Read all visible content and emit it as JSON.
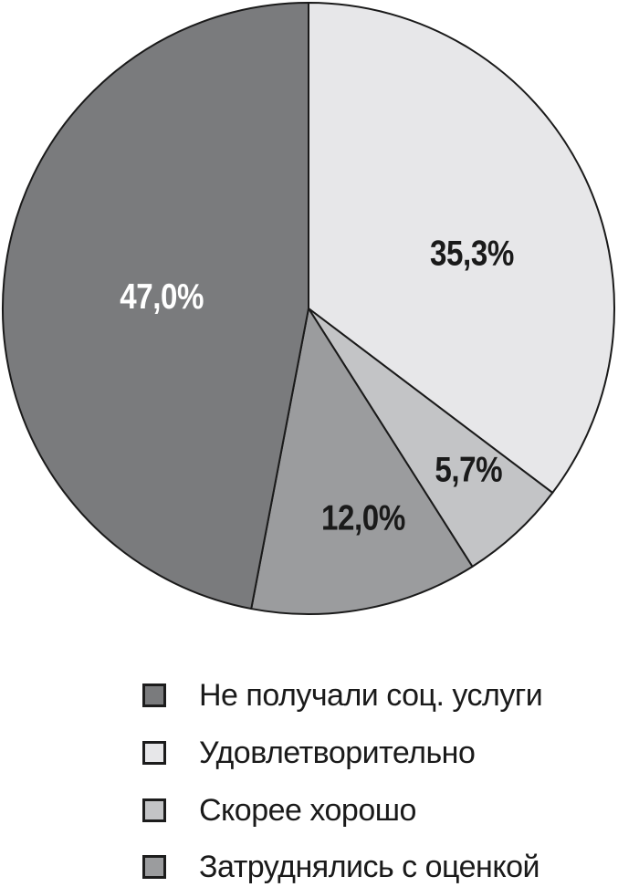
{
  "chart_data": {
    "type": "pie",
    "title": "",
    "start_angle_deg": 0,
    "direction": "clockwise",
    "stroke_color": "#1a1a1a",
    "background_color": "#ffffff",
    "slices": [
      {
        "label": "Удовлетворительно",
        "value": 35.3,
        "display": "35,3%",
        "color": "#e7e7e9",
        "label_color": "#1a1a1a",
        "label_angle_deg": 71,
        "label_r_frac": 0.565
      },
      {
        "label": "Скорее хорошо",
        "value": 5.7,
        "display": "5,7%",
        "color": "#c3c4c6",
        "label_color": "#1a1a1a",
        "label_angle_deg": 135,
        "label_r_frac": 0.74
      },
      {
        "label": "Затруднялись с оценкой",
        "value": 12.0,
        "display": "12,0%",
        "color": "#9b9c9e",
        "label_color": "#1a1a1a",
        "label_angle_deg": 165.3,
        "label_r_frac": 0.705
      },
      {
        "label": "Не получали соц. услуги",
        "value": 47.0,
        "display": "47,0%",
        "color": "#7a7b7d",
        "label_color": "#ffffff",
        "label_angle_deg": 275,
        "label_r_frac": 0.482
      }
    ],
    "legend": {
      "position": "bottom-left",
      "items": [
        {
          "label": "Не получали соц. услуги",
          "color": "#7a7b7d"
        },
        {
          "label": "Удовлетворительно",
          "color": "#e7e7e9"
        },
        {
          "label": "Скорее хорошо",
          "color": "#c3c4c6"
        },
        {
          "label": "Затруднялись с оценкой",
          "color": "#9b9c9e"
        }
      ]
    }
  }
}
